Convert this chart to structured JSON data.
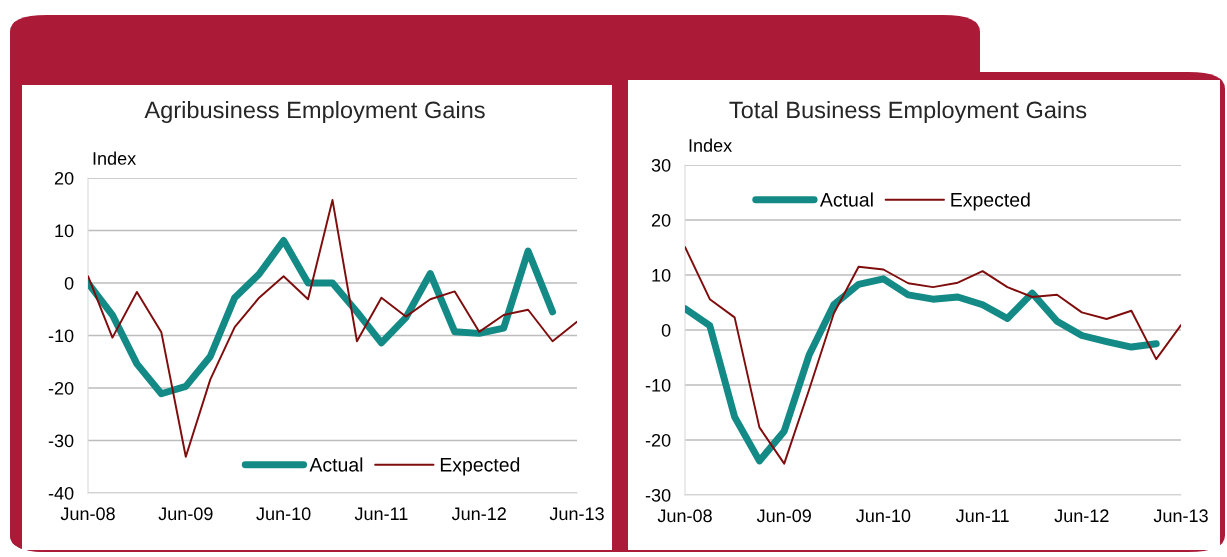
{
  "chart_data": [
    {
      "type": "line",
      "title": "Agribusiness Employment Gains",
      "ylabel": "Index",
      "categories": [
        "Jun-08",
        null,
        null,
        null,
        "Jun-09",
        null,
        null,
        null,
        "Jun-10",
        null,
        null,
        null,
        "Jun-11",
        null,
        null,
        null,
        "Jun-12",
        null,
        null,
        null,
        "Jun-13"
      ],
      "series": [
        {
          "name": "Actual",
          "color": "#138a85",
          "values": [
            0,
            -6.1,
            -15.4,
            -21.1,
            -19.7,
            -14,
            -2.8,
            1.7,
            8.1,
            0,
            0,
            -5.5,
            -11.4,
            -6.6,
            1.8,
            -9.3,
            -9.6,
            -8.6,
            6.1,
            -5.5,
            null
          ]
        },
        {
          "name": "Expected",
          "color": "#7f0d0d",
          "values": [
            1.3,
            -10.4,
            -1.7,
            -9.4,
            -33.1,
            -18.4,
            -8.4,
            -2.8,
            1.3,
            -3.1,
            15.8,
            -11.1,
            -2.8,
            -6.4,
            -3.1,
            -1.6,
            -9.3,
            -6.1,
            -5.1,
            -11.1,
            -7.4
          ]
        }
      ],
      "ylim": [
        -40,
        20
      ],
      "yticks": [
        -40,
        -30,
        -20,
        -10,
        0,
        10,
        20
      ],
      "grid": "y",
      "legend": "bottom right"
    },
    {
      "type": "line",
      "title": "Total Business Employment Gains",
      "ylabel": "Index",
      "categories": [
        "Jun-08",
        null,
        null,
        null,
        "Jun-09",
        null,
        null,
        null,
        "Jun-10",
        null,
        null,
        null,
        "Jun-11",
        null,
        null,
        null,
        "Jun-12",
        null,
        null,
        null,
        "Jun-13"
      ],
      "series": [
        {
          "name": "Actual",
          "color": "#138a85",
          "values": [
            3.9,
            0.8,
            -15.8,
            -23.8,
            -18.4,
            -4.6,
            4.6,
            8.3,
            9.3,
            6.4,
            5.6,
            6.0,
            4.6,
            2.1,
            6.7,
            1.6,
            -1.0,
            -2.1,
            -3.1,
            -2.5,
            null
          ]
        },
        {
          "name": "Expected",
          "color": "#7f0d0d",
          "values": [
            15.1,
            5.6,
            2.3,
            -17.7,
            -24.3,
            -10.9,
            3.0,
            11.5,
            11.0,
            8.5,
            7.8,
            8.6,
            10.7,
            7.8,
            6.0,
            6.4,
            3.2,
            2.0,
            3.5,
            -5.3,
            0.9
          ]
        }
      ],
      "ylim": [
        -30,
        30
      ],
      "yticks": [
        -30,
        -20,
        -10,
        0,
        10,
        20,
        30
      ],
      "grid": "y",
      "legend": "top"
    }
  ]
}
